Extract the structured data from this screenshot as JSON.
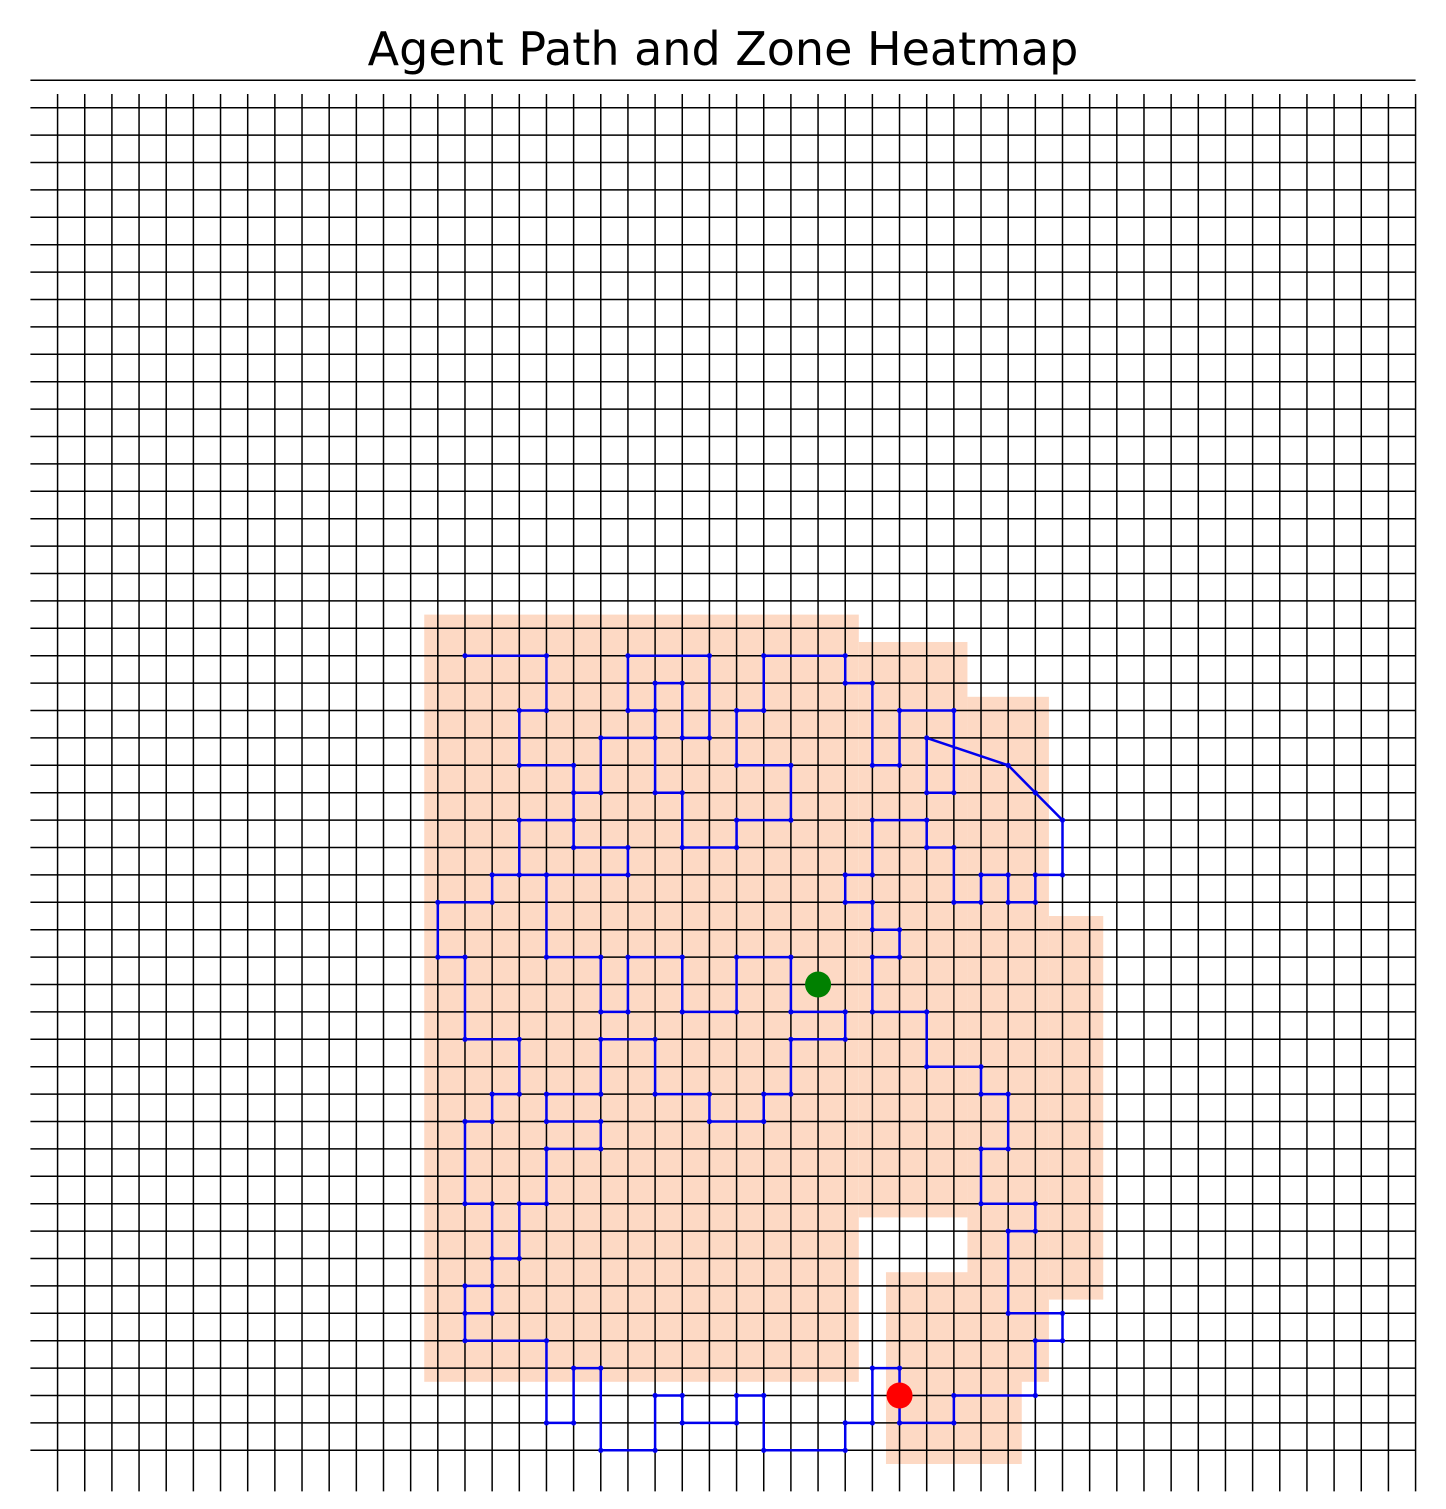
{
  "chart_data": {
    "type": "scatter",
    "title": "Agent Path and Zone Heatmap",
    "xlabel": "",
    "ylabel": "",
    "grid": true,
    "grid_size": 50,
    "axes_visible": false,
    "colors": {
      "zone": "#fdd9c4",
      "path": "#0000ee",
      "start": "#008000",
      "end": "#ff0000",
      "grid": "#000000"
    },
    "zones": [
      {
        "x": [
          14,
          29
        ],
        "y": [
          3,
          30
        ]
      },
      {
        "x": [
          30,
          33
        ],
        "y": [
          9,
          29
        ]
      },
      {
        "x": [
          34,
          36
        ],
        "y": [
          3,
          27
        ]
      },
      {
        "x": [
          37,
          38
        ],
        "y": [
          6,
          19
        ]
      },
      {
        "x": [
          31,
          35
        ],
        "y": [
          0,
          6
        ]
      }
    ],
    "series": [
      {
        "values": [
          [
            15,
            29
          ],
          [
            18,
            29
          ],
          [
            18,
            27
          ],
          [
            17,
            27
          ],
          [
            17,
            25
          ],
          [
            19,
            25
          ],
          [
            19,
            23
          ],
          [
            17,
            23
          ],
          [
            17,
            21
          ],
          [
            21,
            21
          ],
          [
            21,
            22
          ],
          [
            19,
            22
          ],
          [
            19,
            24
          ],
          [
            20,
            24
          ],
          [
            20,
            26
          ],
          [
            22,
            26
          ],
          [
            22,
            28
          ],
          [
            23,
            28
          ],
          [
            23,
            26
          ],
          [
            24,
            26
          ],
          [
            24,
            29
          ],
          [
            21,
            29
          ],
          [
            21,
            27
          ],
          [
            22,
            27
          ],
          [
            22,
            24
          ],
          [
            23,
            24
          ],
          [
            23,
            22
          ],
          [
            25,
            22
          ],
          [
            25,
            23
          ],
          [
            27,
            23
          ],
          [
            27,
            25
          ],
          [
            25,
            25
          ],
          [
            25,
            27
          ],
          [
            26,
            27
          ],
          [
            26,
            29
          ],
          [
            29,
            29
          ],
          [
            29,
            28
          ],
          [
            30,
            28
          ],
          [
            30,
            25
          ],
          [
            31,
            25
          ],
          [
            31,
            27
          ],
          [
            33,
            27
          ],
          [
            33,
            24
          ],
          [
            32,
            24
          ],
          [
            32,
            26
          ],
          [
            35,
            25
          ],
          [
            36,
            24
          ],
          [
            37,
            23
          ],
          [
            37,
            21
          ],
          [
            36,
            21
          ],
          [
            36,
            20
          ],
          [
            35,
            20
          ],
          [
            35,
            21
          ],
          [
            34,
            21
          ],
          [
            34,
            20
          ],
          [
            33,
            20
          ],
          [
            33,
            22
          ],
          [
            32,
            22
          ],
          [
            32,
            23
          ],
          [
            30,
            23
          ],
          [
            30,
            21
          ],
          [
            29,
            21
          ],
          [
            29,
            20
          ],
          [
            30,
            20
          ],
          [
            30,
            19
          ],
          [
            31,
            19
          ],
          [
            31,
            18
          ],
          [
            30,
            18
          ],
          [
            30,
            16
          ],
          [
            32,
            16
          ],
          [
            32,
            14
          ],
          [
            34,
            14
          ],
          [
            34,
            13
          ],
          [
            35,
            13
          ],
          [
            35,
            11
          ],
          [
            34,
            11
          ],
          [
            34,
            9
          ],
          [
            36,
            9
          ],
          [
            36,
            8
          ],
          [
            35,
            8
          ],
          [
            35,
            5
          ],
          [
            37,
            5
          ],
          [
            37,
            4
          ],
          [
            36,
            4
          ],
          [
            36,
            2
          ],
          [
            33,
            2
          ],
          [
            33,
            1
          ],
          [
            31,
            1
          ],
          [
            31,
            3
          ],
          [
            30,
            3
          ],
          [
            30,
            1
          ],
          [
            29,
            1
          ],
          [
            29,
            0
          ],
          [
            26,
            0
          ],
          [
            26,
            2
          ],
          [
            25,
            2
          ],
          [
            25,
            1
          ],
          [
            23,
            1
          ],
          [
            23,
            2
          ],
          [
            22,
            2
          ],
          [
            22,
            0
          ],
          [
            20,
            0
          ],
          [
            20,
            3
          ],
          [
            19,
            3
          ],
          [
            19,
            1
          ],
          [
            18,
            1
          ],
          [
            18,
            4
          ],
          [
            15,
            4
          ],
          [
            15,
            6
          ],
          [
            16,
            6
          ],
          [
            16,
            9
          ],
          [
            15,
            9
          ],
          [
            15,
            12
          ],
          [
            16,
            12
          ],
          [
            16,
            13
          ],
          [
            17,
            13
          ],
          [
            17,
            15
          ],
          [
            15,
            15
          ],
          [
            15,
            18
          ],
          [
            14,
            18
          ],
          [
            14,
            20
          ],
          [
            16,
            20
          ],
          [
            16,
            21
          ],
          [
            18,
            21
          ],
          [
            18,
            18
          ],
          [
            20,
            18
          ],
          [
            20,
            16
          ],
          [
            21,
            16
          ],
          [
            21,
            18
          ],
          [
            23,
            18
          ],
          [
            23,
            16
          ],
          [
            25,
            16
          ],
          [
            25,
            18
          ],
          [
            27,
            18
          ],
          [
            27,
            16
          ],
          [
            29,
            16
          ],
          [
            29,
            15
          ],
          [
            27,
            15
          ],
          [
            27,
            13
          ],
          [
            26,
            13
          ],
          [
            26,
            12
          ],
          [
            24,
            12
          ],
          [
            24,
            13
          ],
          [
            22,
            13
          ],
          [
            22,
            15
          ],
          [
            20,
            15
          ],
          [
            20,
            13
          ],
          [
            18,
            13
          ],
          [
            18,
            12
          ],
          [
            20,
            12
          ],
          [
            20,
            11
          ],
          [
            18,
            11
          ],
          [
            18,
            9
          ],
          [
            17,
            9
          ],
          [
            17,
            7
          ],
          [
            16,
            7
          ],
          [
            16,
            5
          ],
          [
            15,
            5
          ]
        ]
      }
    ],
    "start_point": [
      28,
      17
    ],
    "end_point": [
      31,
      2
    ]
  }
}
